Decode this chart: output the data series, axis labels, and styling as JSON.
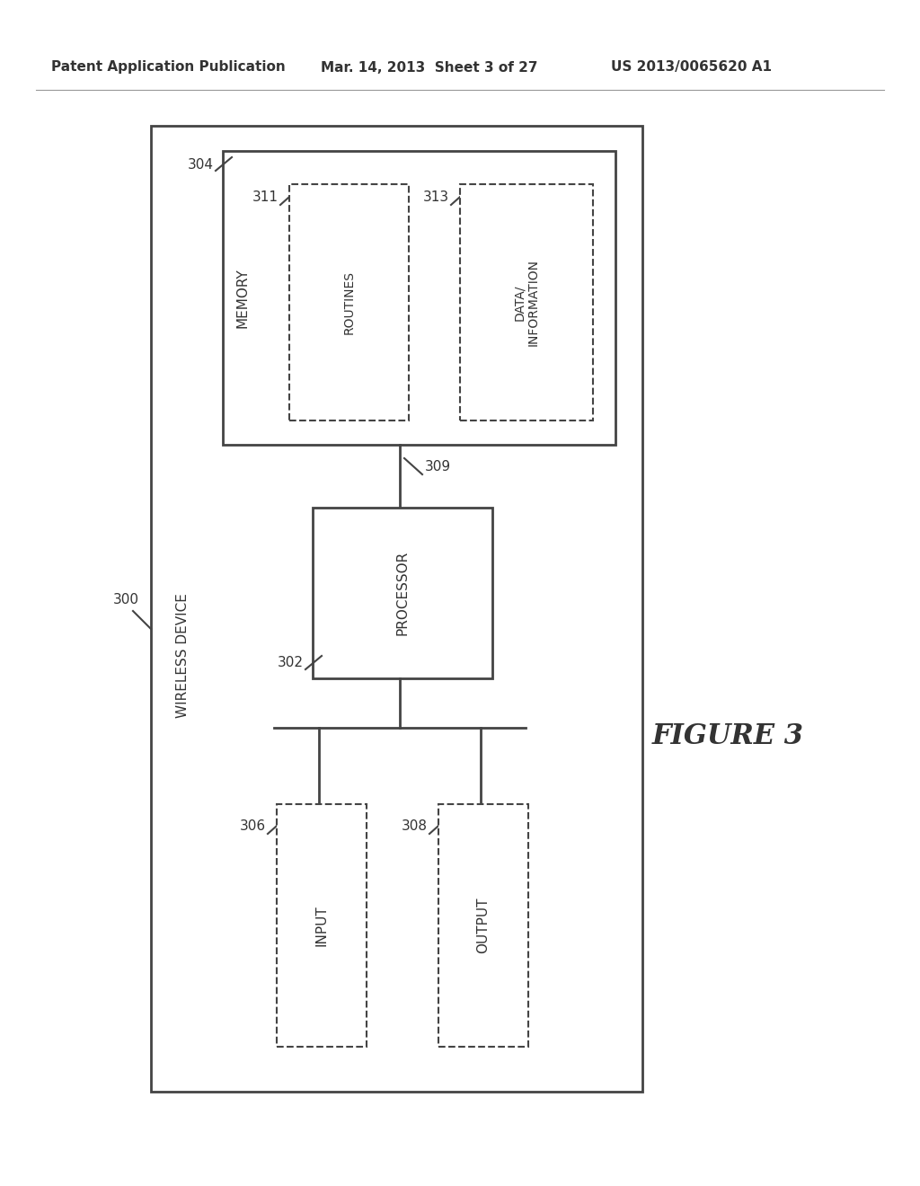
{
  "bg_color": "#ffffff",
  "header_left": "Patent Application Publication",
  "header_mid": "Mar. 14, 2013  Sheet 3 of 27",
  "header_right": "US 2013/0065620 A1",
  "figure_label": "FIGURE 3",
  "outer_box_label": "WIRELESS DEVICE",
  "outer_box_label_id": "300",
  "memory_box_label": "MEMORY",
  "memory_box_id": "304",
  "routines_label": "ROUTINES",
  "routines_id": "311",
  "data_info_label": "DATA/\nINFORMATION",
  "data_info_id": "313",
  "processor_label": "PROCESSOR",
  "processor_id": "302",
  "bus_id": "309",
  "input_label": "INPUT",
  "input_id": "306",
  "output_label": "OUTPUT",
  "output_id": "308",
  "line_color": "#444444",
  "text_color": "#333333"
}
